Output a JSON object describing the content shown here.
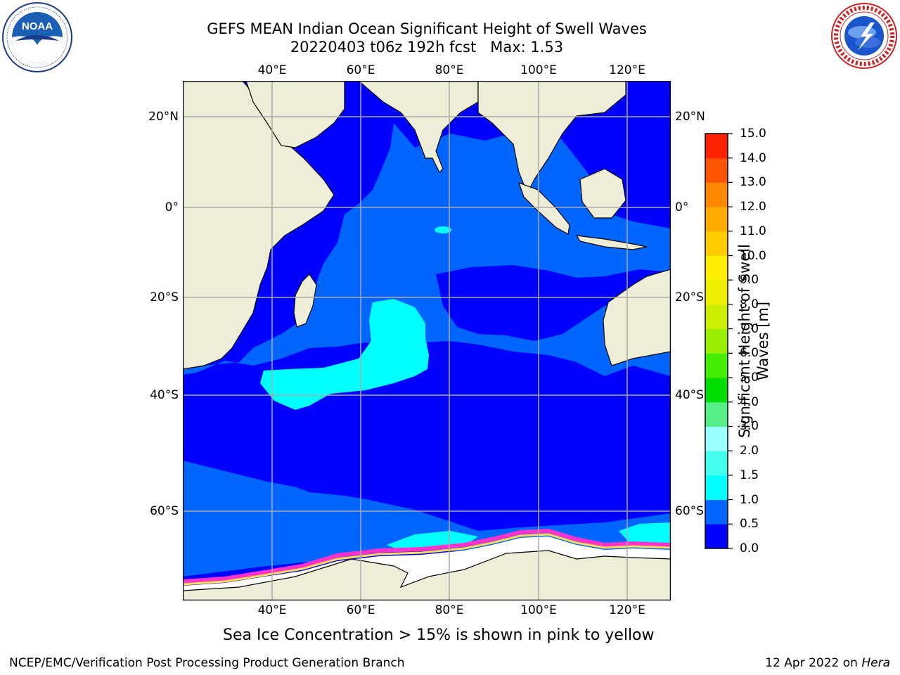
{
  "title": {
    "line1": "GEFS MEAN Indian Ocean Significant Height of Swell Waves",
    "line2": "20220403 t06z 192h fcst   Max: 1.53"
  },
  "logos": {
    "left": {
      "icon": "noaa-logo",
      "text": "NOAA",
      "ring_text": "NATIONAL OCEANIC AND ATMOSPHERIC ADMINISTRATION · U.S. DEPARTMENT OF COMMERCE"
    },
    "right": {
      "icon": "nws-logo",
      "ring_text": "NATIONAL WEATHER SERVICE"
    }
  },
  "map": {
    "lon_ticks": [
      "40°E",
      "60°E",
      "80°E",
      "100°E",
      "120°E"
    ],
    "lat_ticks": [
      "20°N",
      "0°",
      "20°S",
      "40°S",
      "60°S"
    ],
    "colors": {
      "ocean_low": "#0000ff",
      "ocean_mid": "#0066ff",
      "ocean_hi": "#00ffff",
      "land": "#eeeed8",
      "ice": "#ffffff",
      "ice_edge": [
        "#ff33cc",
        "#ffaa66",
        "#ffee44"
      ]
    }
  },
  "colorbar": {
    "label": "Significant Height of Swell Waves [m]",
    "ticks": [
      "0.0",
      "0.5",
      "1.0",
      "1.5",
      "2.0",
      "3.0",
      "4.0",
      "5.0",
      "6.0",
      "7.0",
      "8.0",
      "9.0",
      "10.0",
      "11.0",
      "12.0",
      "13.0",
      "14.0",
      "15.0"
    ],
    "colors": [
      "#0000ff",
      "#0066ff",
      "#00ffff",
      "#44ffee",
      "#99ffff",
      "#55ee88",
      "#00dd00",
      "#44ee00",
      "#99ee00",
      "#ccee00",
      "#eeee00",
      "#ffee00",
      "#ffcc00",
      "#ffaa00",
      "#ff8800",
      "#ff5500",
      "#ff2200"
    ]
  },
  "caption": "Sea Ice Concentration > 15% is shown in pink to yellow",
  "footer": {
    "left": "NCEP/EMC/Verification Post Processing Product Generation Branch",
    "right_date": "12 Apr 2022 on ",
    "right_host": "Hera"
  }
}
